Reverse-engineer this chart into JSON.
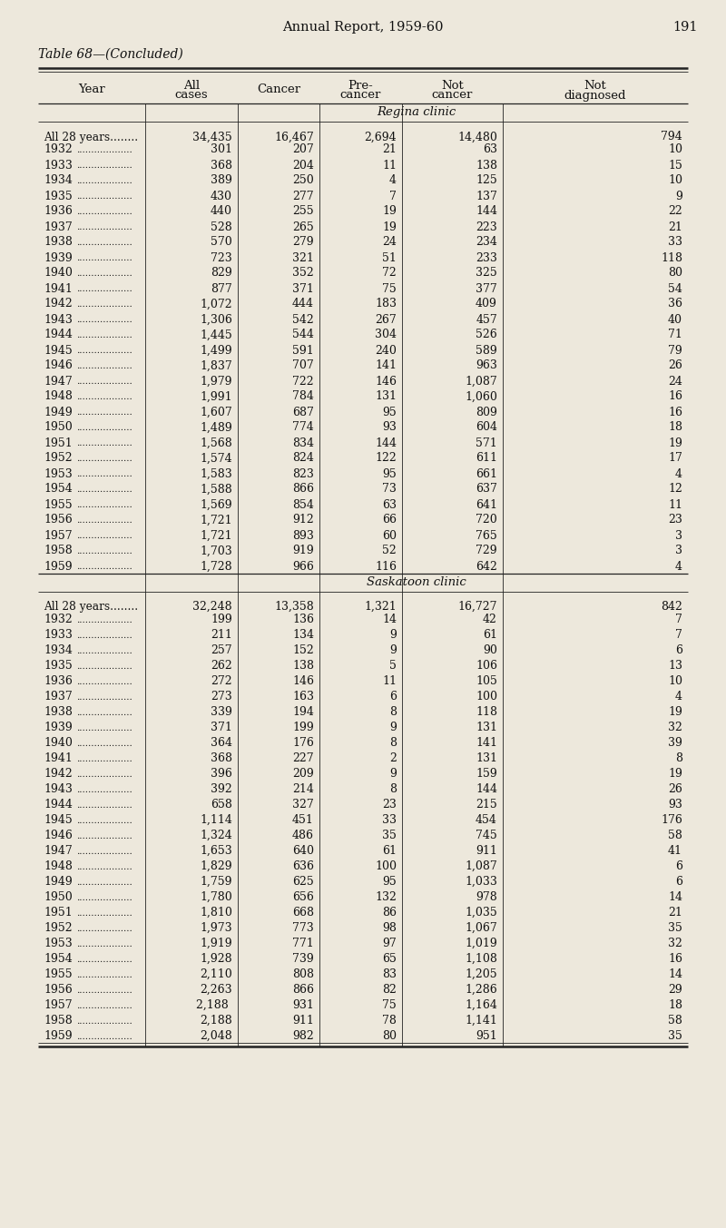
{
  "page_header": "Annual Report, 1959-60",
  "page_number": "191",
  "table_title": "Table 68—(Concluded)",
  "col_headers": [
    [
      "Year",
      ""
    ],
    [
      "All",
      "cases"
    ],
    [
      "Cancer",
      ""
    ],
    [
      "Pre-",
      "cancer"
    ],
    [
      "Not",
      "cancer"
    ],
    [
      "Not",
      "diagnosed"
    ]
  ],
  "regina_clinic_label": "Regina clinic",
  "regina_summary_label": "All 28 years........",
  "regina_summary": [
    "34,435",
    "16,467",
    "2,694",
    "14,480",
    "794"
  ],
  "regina_rows": [
    [
      "1932",
      "301",
      "207",
      "21",
      "63",
      "10"
    ],
    [
      "1933",
      "368",
      "204",
      "11",
      "138",
      "15"
    ],
    [
      "1934",
      "389",
      "250",
      "4",
      "125",
      "10"
    ],
    [
      "1935",
      "430",
      "277",
      "7",
      "137",
      "9"
    ],
    [
      "1936",
      "440",
      "255",
      "19",
      "144",
      "22"
    ],
    [
      "1937",
      "528",
      "265",
      "19",
      "223",
      "21"
    ],
    [
      "1938",
      "570",
      "279",
      "24",
      "234",
      "33"
    ],
    [
      "1939",
      "723",
      "321",
      "51",
      "233",
      "118"
    ],
    [
      "1940",
      "829",
      "352",
      "72",
      "325",
      "80"
    ],
    [
      "1941",
      "877",
      "371",
      "75",
      "377",
      "54"
    ],
    [
      "1942",
      "1,072",
      "444",
      "183",
      "409",
      "36"
    ],
    [
      "1943",
      "1,306",
      "542",
      "267",
      "457",
      "40"
    ],
    [
      "1944",
      "1,445",
      "544",
      "304",
      "526",
      "71"
    ],
    [
      "1945",
      "1,499",
      "591",
      "240",
      "589",
      "79"
    ],
    [
      "1946",
      "1,837",
      "707",
      "141",
      "963",
      "26"
    ],
    [
      "1947",
      "1,979",
      "722",
      "146",
      "1,087",
      "24"
    ],
    [
      "1948",
      "1,991",
      "784",
      "131",
      "1,060",
      "16"
    ],
    [
      "1949",
      "1,607",
      "687",
      "95",
      "809",
      "16"
    ],
    [
      "1950",
      "1,489",
      "774",
      "93",
      "604",
      "18"
    ],
    [
      "1951",
      "1,568",
      "834",
      "144",
      "571",
      "19"
    ],
    [
      "1952",
      "1,574",
      "824",
      "122",
      "611",
      "17"
    ],
    [
      "1953",
      "1,583",
      "823",
      "95",
      "661",
      "4"
    ],
    [
      "1954",
      "1,588",
      "866",
      "73",
      "637",
      "12"
    ],
    [
      "1955",
      "1,569",
      "854",
      "63",
      "641",
      "11"
    ],
    [
      "1956",
      "1,721",
      "912",
      "66",
      "720",
      "23"
    ],
    [
      "1957",
      "1,721",
      "893",
      "60",
      "765",
      "3"
    ],
    [
      "1958",
      "1,703",
      "919",
      "52",
      "729",
      "3"
    ],
    [
      "1959",
      "1,728",
      "966",
      "116",
      "642",
      "4"
    ]
  ],
  "saskatoon_clinic_label": "Saskatoon clinic",
  "saskatoon_summary_label": "All 28 years........",
  "saskatoon_summary": [
    "32,248",
    "13,358",
    "1,321",
    "16,727",
    "842"
  ],
  "saskatoon_rows": [
    [
      "1932",
      "199",
      "136",
      "14",
      "42",
      "7"
    ],
    [
      "1933",
      "211",
      "134",
      "9",
      "61",
      "7"
    ],
    [
      "1934",
      "257",
      "152",
      "9",
      "90",
      "6"
    ],
    [
      "1935",
      "262",
      "138",
      "5",
      "106",
      "13"
    ],
    [
      "1936",
      "272",
      "146",
      "11",
      "105",
      "10"
    ],
    [
      "1937",
      "273",
      "163",
      "6",
      "100",
      "4"
    ],
    [
      "1938",
      "339",
      "194",
      "8",
      "118",
      "19"
    ],
    [
      "1939",
      "371",
      "199",
      "9",
      "131",
      "32"
    ],
    [
      "1940",
      "364",
      "176",
      "8",
      "141",
      "39"
    ],
    [
      "1941",
      "368",
      "227",
      "2",
      "131",
      "8"
    ],
    [
      "1942",
      "396",
      "209",
      "9",
      "159",
      "19"
    ],
    [
      "1943",
      "392",
      "214",
      "8",
      "144",
      "26"
    ],
    [
      "1944",
      "658",
      "327",
      "23",
      "215",
      "93"
    ],
    [
      "1945",
      "1,114",
      "451",
      "33",
      "454",
      "176"
    ],
    [
      "1946",
      "1,324",
      "486",
      "35",
      "745",
      "58"
    ],
    [
      "1947",
      "1,653",
      "640",
      "61",
      "911",
      "41"
    ],
    [
      "1948",
      "1,829",
      "636",
      "100",
      "1,087",
      "6"
    ],
    [
      "1949",
      "1,759",
      "625",
      "95",
      "1,033",
      "6"
    ],
    [
      "1950",
      "1,780",
      "656",
      "132",
      "978",
      "14"
    ],
    [
      "1951",
      "1,810",
      "668",
      "86",
      "1,035",
      "21"
    ],
    [
      "1952",
      "1,973",
      "773",
      "98",
      "1,067",
      "35"
    ],
    [
      "1953",
      "1,919",
      "771",
      "97",
      "1,019",
      "32"
    ],
    [
      "1954",
      "1,928",
      "739",
      "65",
      "1,108",
      "16"
    ],
    [
      "1955",
      "2,110",
      "808",
      "83",
      "1,205",
      "14"
    ],
    [
      "1956",
      "2,263",
      "866",
      "82",
      "1,286",
      "29"
    ],
    [
      "1957",
      "2,188 ",
      "931",
      "75",
      "1,164",
      "18"
    ],
    [
      "1958",
      "2,188",
      "911",
      "78",
      "1,141",
      "58"
    ],
    [
      "1959",
      "2,048",
      "982",
      "80",
      "951",
      "35"
    ]
  ],
  "bg_color": "#ede8dc",
  "text_color": "#111111",
  "line_color": "#222222"
}
